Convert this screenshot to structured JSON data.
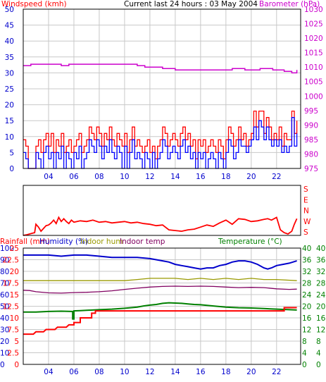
{
  "colors": {
    "wind_gust": "#ff0000",
    "wind_avg": "#0000ff",
    "barometer": "#cc00cc",
    "direction": "#ff0000",
    "rainfall": "#ff0000",
    "humidity": "#0000cc",
    "indoor_hum": "#999900",
    "indoor_temp": "#800060",
    "temperature": "#008000",
    "frame": "#000000",
    "grid": "#c8c8c8"
  },
  "chart_data": [
    {
      "type": "line",
      "name_id": "wind-barometer",
      "title": "Current last 24 hours : 03 May 2004",
      "ylabel_left": "Windspeed (kmh)",
      "ylabel_right": "Barometer (hPa)",
      "x_ticks": [
        "04",
        "06",
        "08",
        "10",
        "12",
        "14",
        "16",
        "18",
        "20",
        "22"
      ],
      "x_tick_hours": [
        4,
        6,
        8,
        10,
        12,
        14,
        16,
        18,
        20,
        22
      ],
      "x_range": [
        2,
        23.9
      ],
      "y_left_ticks": [
        "0",
        "5",
        "10",
        "15",
        "20",
        "25",
        "30",
        "35",
        "40",
        "45",
        "50"
      ],
      "ylim_left": [
        0,
        50
      ],
      "y_right_ticks": [
        "975",
        "980",
        "985",
        "990",
        "995",
        "1000",
        "1005",
        "1010",
        "1015",
        "1020",
        "1025",
        "1030"
      ],
      "ylim_right": [
        975,
        1030
      ],
      "grid": true,
      "series": [
        {
          "key": "barometer",
          "axis": "right",
          "x": [
            2.0,
            2.5,
            2.6,
            3.3,
            5.0,
            5.5,
            5.6,
            6.6,
            11.0,
            11.6,
            12.5,
            13.0,
            13.3,
            14.0,
            18.3,
            18.5,
            19.3,
            19.5,
            20.5,
            20.7,
            21.5,
            21.7,
            22.6,
            23.2,
            23.4,
            23.6
          ],
          "y": [
            1010.5,
            1010.5,
            1011.0,
            1011.0,
            1010.5,
            1010.5,
            1011.0,
            1011.0,
            1010.5,
            1010.0,
            1010.0,
            1009.5,
            1009.5,
            1009.0,
            1009.0,
            1009.5,
            1009.5,
            1009.0,
            1009.0,
            1009.5,
            1009.5,
            1009.0,
            1008.5,
            1008.0,
            1008.0,
            1009.0
          ]
        },
        {
          "key": "wind_gust",
          "axis": "left",
          "x": [
            2.0,
            2.2,
            2.4,
            2.6,
            2.8,
            3.0,
            3.2,
            3.4,
            3.6,
            3.8,
            4.0,
            4.2,
            4.4,
            4.6,
            4.8,
            5.0,
            5.2,
            5.4,
            5.6,
            5.8,
            6.0,
            6.2,
            6.4,
            6.6,
            6.8,
            7.0,
            7.2,
            7.4,
            7.6,
            7.8,
            8.0,
            8.2,
            8.4,
            8.6,
            8.8,
            9.0,
            9.2,
            9.4,
            9.6,
            9.8,
            10.0,
            10.2,
            10.4,
            10.6,
            10.8,
            11.0,
            11.2,
            11.4,
            11.6,
            11.8,
            12.0,
            12.2,
            12.4,
            12.6,
            12.8,
            13.0,
            13.2,
            13.4,
            13.6,
            13.8,
            14.0,
            14.2,
            14.4,
            14.6,
            14.8,
            15.0,
            15.2,
            15.4,
            15.6,
            15.8,
            16.0,
            16.2,
            16.4,
            16.6,
            16.8,
            17.0,
            17.2,
            17.4,
            17.6,
            17.8,
            18.0,
            18.2,
            18.4,
            18.6,
            18.8,
            19.0,
            19.2,
            19.4,
            19.6,
            19.8,
            20.0,
            20.2,
            20.4,
            20.6,
            20.8,
            21.0,
            21.2,
            21.4,
            21.6,
            21.8,
            22.0,
            22.2,
            22.4,
            22.6,
            22.8,
            23.0,
            23.2,
            23.4,
            23.6
          ],
          "y": [
            9,
            7,
            0,
            0,
            0,
            7,
            9,
            5,
            9,
            11,
            7,
            11,
            5,
            9,
            7,
            11,
            5,
            7,
            9,
            5,
            7,
            9,
            11,
            5,
            7,
            9,
            13,
            11,
            9,
            13,
            11,
            7,
            11,
            9,
            13,
            9,
            7,
            11,
            9,
            7,
            11,
            5,
            9,
            13,
            7,
            9,
            7,
            5,
            7,
            9,
            5,
            7,
            3,
            7,
            9,
            13,
            11,
            7,
            9,
            11,
            9,
            7,
            11,
            13,
            9,
            11,
            7,
            9,
            3,
            9,
            7,
            9,
            5,
            7,
            9,
            7,
            5,
            9,
            7,
            3,
            9,
            13,
            11,
            7,
            9,
            13,
            9,
            11,
            7,
            9,
            11,
            18,
            13,
            18,
            18,
            11,
            16,
            13,
            9,
            11,
            9,
            13,
            7,
            11,
            9,
            9,
            18,
            11,
            15
          ]
        },
        {
          "key": "wind_avg",
          "axis": "left",
          "x": [
            2.0,
            2.2,
            2.4,
            2.6,
            2.8,
            3.0,
            3.2,
            3.4,
            3.6,
            3.8,
            4.0,
            4.2,
            4.4,
            4.6,
            4.8,
            5.0,
            5.2,
            5.4,
            5.6,
            5.8,
            6.0,
            6.2,
            6.4,
            6.6,
            6.8,
            7.0,
            7.2,
            7.4,
            7.6,
            7.8,
            8.0,
            8.2,
            8.4,
            8.6,
            8.8,
            9.0,
            9.2,
            9.4,
            9.6,
            9.8,
            10.0,
            10.2,
            10.4,
            10.6,
            10.8,
            11.0,
            11.2,
            11.4,
            11.6,
            11.8,
            12.0,
            12.2,
            12.4,
            12.6,
            12.8,
            13.0,
            13.2,
            13.4,
            13.6,
            13.8,
            14.0,
            14.2,
            14.4,
            14.6,
            14.8,
            15.0,
            15.2,
            15.4,
            15.6,
            15.8,
            16.0,
            16.2,
            16.4,
            16.6,
            16.8,
            17.0,
            17.2,
            17.4,
            17.6,
            17.8,
            18.0,
            18.2,
            18.4,
            18.6,
            18.8,
            19.0,
            19.2,
            19.4,
            19.6,
            19.8,
            20.0,
            20.2,
            20.4,
            20.6,
            20.8,
            21.0,
            21.2,
            21.4,
            21.6,
            21.8,
            22.0,
            22.2,
            22.4,
            22.6,
            22.8,
            23.0,
            23.2,
            23.4,
            23.6
          ],
          "y": [
            5,
            3,
            0,
            0,
            0,
            5,
            3,
            0,
            5,
            7,
            3,
            5,
            0,
            5,
            3,
            7,
            0,
            5,
            3,
            0,
            5,
            3,
            7,
            0,
            3,
            5,
            9,
            7,
            5,
            9,
            7,
            3,
            7,
            5,
            9,
            5,
            3,
            7,
            5,
            0,
            7,
            0,
            5,
            9,
            3,
            5,
            3,
            0,
            5,
            3,
            0,
            5,
            0,
            3,
            5,
            9,
            7,
            3,
            5,
            7,
            5,
            3,
            7,
            9,
            5,
            7,
            3,
            5,
            0,
            5,
            3,
            5,
            0,
            3,
            5,
            3,
            0,
            5,
            3,
            0,
            5,
            9,
            7,
            3,
            5,
            9,
            7,
            7,
            5,
            7,
            9,
            13,
            9,
            15,
            13,
            9,
            13,
            9,
            7,
            9,
            7,
            9,
            5,
            7,
            5,
            7,
            16,
            7,
            11
          ]
        }
      ]
    },
    {
      "type": "line",
      "name_id": "wind-direction",
      "y_right_ticks": [
        "S",
        "E",
        "N",
        "W",
        "S"
      ],
      "ylim": [
        0,
        360
      ],
      "series": [
        {
          "key": "direction",
          "x": [
            2.0,
            2.3,
            2.5,
            2.7,
            2.9,
            3.0,
            3.2,
            3.4,
            3.6,
            3.8,
            4.0,
            4.2,
            4.4,
            4.6,
            4.8,
            5.0,
            5.2,
            5.4,
            5.6,
            5.8,
            6.0,
            6.5,
            7.0,
            7.5,
            8.0,
            8.5,
            9.0,
            9.5,
            10.0,
            10.5,
            11.0,
            11.5,
            12.0,
            12.5,
            13.0,
            13.5,
            14.0,
            14.5,
            15.0,
            15.5,
            16.0,
            16.5,
            17.0,
            17.5,
            18.0,
            18.5,
            19.0,
            19.5,
            20.0,
            20.5,
            21.0,
            21.3,
            21.6,
            22.0,
            22.3,
            22.6,
            22.9,
            23.2,
            23.4,
            23.6
          ],
          "y": [
            0,
            5,
            10,
            15,
            20,
            80,
            60,
            30,
            50,
            70,
            75,
            90,
            110,
            85,
            130,
            100,
            120,
            100,
            85,
            110,
            95,
            105,
            100,
            110,
            95,
            100,
            90,
            95,
            100,
            90,
            95,
            85,
            80,
            70,
            75,
            40,
            35,
            30,
            40,
            45,
            60,
            75,
            65,
            90,
            110,
            80,
            120,
            115,
            100,
            105,
            115,
            120,
            110,
            130,
            40,
            20,
            10,
            30,
            80,
            120
          ]
        }
      ]
    },
    {
      "type": "line",
      "name_id": "rain-humidity-temp",
      "legend": [
        {
          "key": "rainfall",
          "label": "Rainfall (mm)"
        },
        {
          "key": "humidity",
          "label": "Humidity (%)"
        },
        {
          "key": "indoor_hum",
          "label": "Indoor hum"
        },
        {
          "key": "indoor_temp",
          "label": "Indoor temp"
        },
        {
          "key": "temperature",
          "label": "Temperature (°C)"
        }
      ],
      "x_ticks": [
        "04",
        "06",
        "08",
        "10",
        "12",
        "14",
        "16",
        "18",
        "20",
        "22"
      ],
      "x_tick_hours": [
        4,
        6,
        8,
        10,
        12,
        14,
        16,
        18,
        20,
        22
      ],
      "x_range": [
        2,
        23.9
      ],
      "y_humidity_ticks": [
        "0",
        "10",
        "20",
        "30",
        "40",
        "50",
        "60",
        "70",
        "80",
        "90",
        "100"
      ],
      "y_rain_ticks": [
        "0",
        "2.5",
        "5",
        "7.5",
        "10",
        "12.5",
        "15",
        "17.5",
        "20",
        "22.5",
        "25"
      ],
      "y_temp_ticks": [
        "0",
        "4",
        "8",
        "12",
        "16",
        "20",
        "24",
        "28",
        "32",
        "36",
        "40"
      ],
      "ylim_humidity": [
        0,
        100
      ],
      "ylim_rain": [
        0,
        25
      ],
      "ylim_temp": [
        0,
        40
      ],
      "grid": true,
      "series": [
        {
          "key": "rainfall",
          "axis": "rain",
          "x": [
            2.0,
            2.8,
            3.0,
            3.6,
            3.8,
            4.5,
            4.7,
            5.4,
            5.6,
            6.0,
            6.0,
            6.5,
            6.5,
            7.4,
            7.4,
            7.7,
            7.7,
            22.6,
            22.6,
            23.6
          ],
          "y": [
            6.5,
            6.5,
            7.0,
            7.0,
            7.5,
            7.5,
            8.0,
            8.0,
            8.5,
            8.5,
            9.0,
            9.0,
            10.0,
            10.0,
            11.0,
            11.0,
            11.5,
            11.5,
            12.2,
            12.2
          ]
        },
        {
          "key": "humidity",
          "axis": "humidity",
          "x": [
            2.0,
            3.0,
            4.0,
            5.0,
            6.0,
            7.0,
            8.0,
            9.0,
            10.0,
            11.0,
            12.0,
            12.5,
            13.0,
            13.5,
            14.0,
            14.5,
            15.0,
            15.5,
            16.0,
            16.5,
            17.0,
            17.5,
            18.0,
            18.5,
            19.0,
            19.5,
            20.0,
            20.5,
            21.0,
            21.3,
            21.6,
            22.0,
            22.5,
            23.0,
            23.6
          ],
          "y": [
            94,
            94,
            94,
            93,
            94,
            94,
            93,
            92,
            92,
            92,
            91,
            90,
            89,
            88,
            86,
            85,
            84,
            83,
            82,
            83,
            83,
            85,
            86,
            88,
            89,
            89,
            88,
            86,
            83,
            82,
            83,
            85,
            86,
            87,
            89
          ]
        },
        {
          "key": "indoor_hum",
          "axis": "humidity",
          "x": [
            2.0,
            4.0,
            6.0,
            8.0,
            10.0,
            11.0,
            12.0,
            13.0,
            14.0,
            15.0,
            16.0,
            17.0,
            18.0,
            19.0,
            20.0,
            21.0,
            22.0,
            23.6
          ],
          "y": [
            72,
            72,
            72,
            72,
            72,
            73,
            74,
            74,
            74,
            73,
            74,
            73,
            74,
            73,
            74,
            73,
            73,
            72
          ]
        },
        {
          "key": "indoor_temp",
          "axis": "temp",
          "x": [
            2.0,
            2.5,
            3.0,
            4.0,
            5.0,
            6.0,
            7.0,
            8.0,
            9.0,
            10.0,
            11.0,
            12.0,
            13.0,
            14.0,
            15.0,
            16.0,
            17.0,
            18.0,
            19.0,
            20.0,
            21.0,
            22.0,
            23.0,
            23.6
          ],
          "y": [
            25.5,
            25.4,
            25.0,
            24.6,
            24.5,
            24.7,
            24.8,
            25.0,
            25.3,
            25.8,
            26.2,
            26.6,
            26.8,
            26.9,
            26.8,
            26.9,
            26.8,
            26.6,
            26.4,
            26.5,
            26.4,
            26.0,
            25.8,
            25.9
          ]
        },
        {
          "key": "temperature",
          "axis": "temp",
          "x": [
            2.0,
            3.0,
            4.0,
            5.0,
            5.8,
            5.9,
            5.9,
            6.0,
            6.0,
            6.5,
            7.0,
            8.0,
            9.0,
            10.0,
            11.0,
            11.5,
            12.0,
            12.5,
            13.0,
            13.5,
            14.0,
            14.5,
            15.0,
            15.5,
            16.0,
            17.0,
            18.0,
            19.0,
            20.0,
            21.0,
            22.0,
            23.0,
            23.6
          ],
          "y": [
            18.0,
            18.0,
            18.2,
            18.3,
            18.2,
            18.2,
            15.6,
            15.6,
            18.4,
            18.5,
            18.6,
            18.8,
            19.0,
            19.3,
            19.7,
            20.1,
            20.4,
            20.6,
            21.0,
            21.2,
            21.1,
            21.0,
            20.8,
            20.6,
            20.5,
            20.1,
            19.7,
            19.5,
            19.4,
            19.2,
            19.0,
            18.8,
            18.7
          ]
        }
      ]
    }
  ]
}
